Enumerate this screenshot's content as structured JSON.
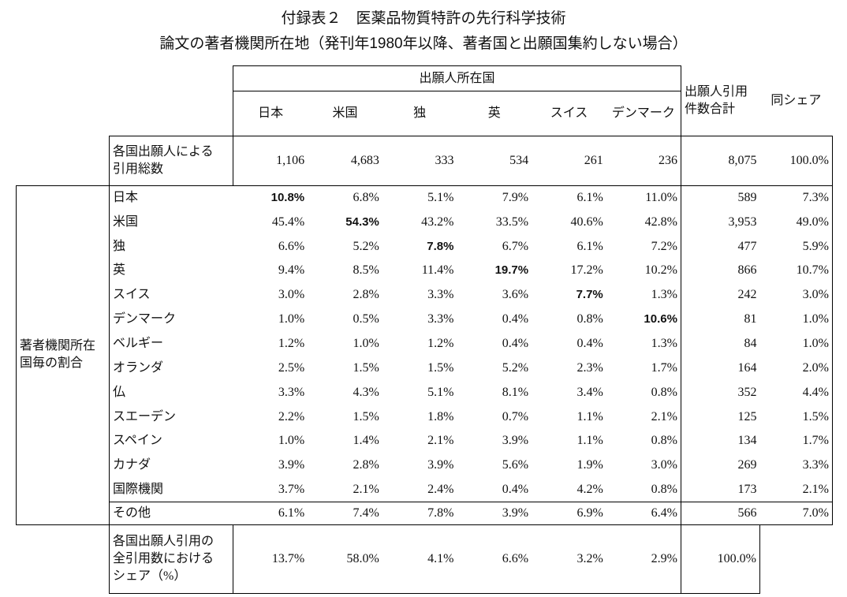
{
  "title": [
    "付録表２　医薬品物質特許の先行科学技術",
    "論文の著者機関所在地（発刊年1980年以降、著者国と出願国集約しない場合）"
  ],
  "table": {
    "group_header": "出願人所在国",
    "columns": [
      "日本",
      "米国",
      "独",
      "英",
      "スイス",
      "デンマーク",
      [
        "出願人引用",
        "件数合計"
      ],
      "同シェア"
    ],
    "total_row": {
      "label": [
        "各国出願人による",
        "引用総数"
      ],
      "values": [
        "1,106",
        "4,683",
        "333",
        "534",
        "261",
        "236"
      ],
      "total": "8,075",
      "share": "100.0%"
    },
    "group_label": [
      "著者機関所在",
      "国毎の割合"
    ],
    "rows": [
      {
        "label": "日本",
        "values": [
          "10.8%",
          "6.8%",
          "5.1%",
          "7.9%",
          "6.1%",
          "11.0%"
        ],
        "total": "589",
        "share": "7.3%"
      },
      {
        "label": "米国",
        "values": [
          "45.4%",
          "54.3%",
          "43.2%",
          "33.5%",
          "40.6%",
          "42.8%"
        ],
        "total": "3,953",
        "share": "49.0%"
      },
      {
        "label": "独",
        "values": [
          "6.6%",
          "5.2%",
          "7.8%",
          "6.7%",
          "6.1%",
          "7.2%"
        ],
        "total": "477",
        "share": "5.9%"
      },
      {
        "label": "英",
        "values": [
          "9.4%",
          "8.5%",
          "11.4%",
          "19.7%",
          "17.2%",
          "10.2%"
        ],
        "total": "866",
        "share": "10.7%"
      },
      {
        "label": "スイス",
        "values": [
          "3.0%",
          "2.8%",
          "3.3%",
          "3.6%",
          "7.7%",
          "1.3%"
        ],
        "total": "242",
        "share": "3.0%"
      },
      {
        "label": "デンマーク",
        "values": [
          "1.0%",
          "0.5%",
          "3.3%",
          "0.4%",
          "0.8%",
          "10.6%"
        ],
        "total": "81",
        "share": "1.0%"
      },
      {
        "label": "ベルギー",
        "values": [
          "1.2%",
          "1.0%",
          "1.2%",
          "0.4%",
          "0.4%",
          "1.3%"
        ],
        "total": "84",
        "share": "1.0%"
      },
      {
        "label": "オランダ",
        "values": [
          "2.5%",
          "1.5%",
          "1.5%",
          "5.2%",
          "2.3%",
          "1.7%"
        ],
        "total": "164",
        "share": "2.0%"
      },
      {
        "label": "仏",
        "values": [
          "3.3%",
          "4.3%",
          "5.1%",
          "8.1%",
          "3.4%",
          "0.8%"
        ],
        "total": "352",
        "share": "4.4%"
      },
      {
        "label": "スエーデン",
        "values": [
          "2.2%",
          "1.5%",
          "1.8%",
          "0.7%",
          "1.1%",
          "2.1%"
        ],
        "total": "125",
        "share": "1.5%"
      },
      {
        "label": "スペイン",
        "values": [
          "1.0%",
          "1.4%",
          "2.1%",
          "3.9%",
          "1.1%",
          "0.8%"
        ],
        "total": "134",
        "share": "1.7%"
      },
      {
        "label": "カナダ",
        "values": [
          "3.9%",
          "2.8%",
          "3.9%",
          "5.6%",
          "1.9%",
          "3.0%"
        ],
        "total": "269",
        "share": "3.3%"
      },
      {
        "label": "国際機関",
        "values": [
          "3.7%",
          "2.1%",
          "2.4%",
          "0.4%",
          "4.2%",
          "0.8%"
        ],
        "total": "173",
        "share": "2.1%"
      },
      {
        "label": "その他",
        "values": [
          "6.1%",
          "7.4%",
          "7.8%",
          "3.9%",
          "6.9%",
          "6.4%"
        ],
        "total": "566",
        "share": "7.0%"
      }
    ],
    "share_row": {
      "label": [
        "各国出願人引用の",
        "全引用数における",
        "シェア（%）"
      ],
      "values": [
        "13.7%",
        "58.0%",
        "4.1%",
        "6.6%",
        "3.2%",
        "2.9%"
      ],
      "total": "100.0%"
    }
  }
}
